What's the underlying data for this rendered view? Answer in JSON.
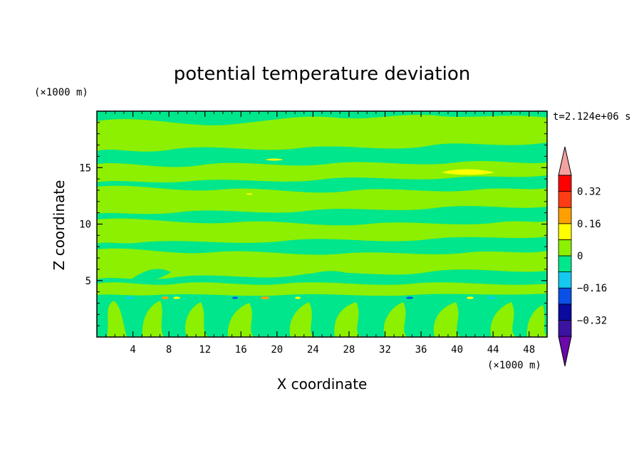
{
  "chart_data": {
    "type": "heatmap",
    "title": "potential temperature deviation",
    "xlabel": "X coordinate",
    "ylabel": "Z coordinate",
    "x_unit": "(×1000 m)",
    "y_unit": "(×1000 m)",
    "time_label": "t=2.124e+06 s",
    "xlim": [
      0,
      50
    ],
    "ylim": [
      0,
      20
    ],
    "x_ticks": [
      4,
      8,
      12,
      16,
      20,
      24,
      28,
      32,
      36,
      40,
      44,
      48
    ],
    "y_ticks": [
      5,
      10,
      15
    ],
    "colorbar": {
      "levels": [
        -0.4,
        -0.32,
        -0.24,
        -0.16,
        -0.08,
        0,
        0.08,
        0.16,
        0.24,
        0.32,
        0.4
      ],
      "labels": [
        "0.32",
        "0.16",
        "0",
        "−0.16",
        "−0.32"
      ],
      "label_values": [
        0.32,
        0.16,
        0,
        -0.16,
        -0.32
      ],
      "colors_bottom_to_top": [
        "#6a0aa8",
        "#3a14a0",
        "#0a0aa0",
        "#0a50e6",
        "#14c8f0",
        "#00e68c",
        "#8cf000",
        "#ffff00",
        "#ffa000",
        "#ff3c14",
        "#ff0000",
        "#f5a0a0"
      ]
    },
    "field_bands": [
      {
        "zmin": 0,
        "zmax": 3.5,
        "dominant": "mixed",
        "colors": [
          "#00e68c",
          "#8cf000"
        ]
      },
      {
        "zmin": 3.5,
        "zmax": 3.7,
        "dominant": "#00e68c",
        "features": "thin line with small cyan/blue and yellow/orange spots"
      },
      {
        "zmin": 3.7,
        "zmax": 9,
        "dominant": "mixed",
        "colors": [
          "#00e68c",
          "#8cf000"
        ]
      },
      {
        "zmin": 9,
        "zmax": 20,
        "dominant": "mixed layers",
        "colors": [
          "#00e68c",
          "#8cf000",
          "#ffff00"
        ]
      }
    ]
  }
}
